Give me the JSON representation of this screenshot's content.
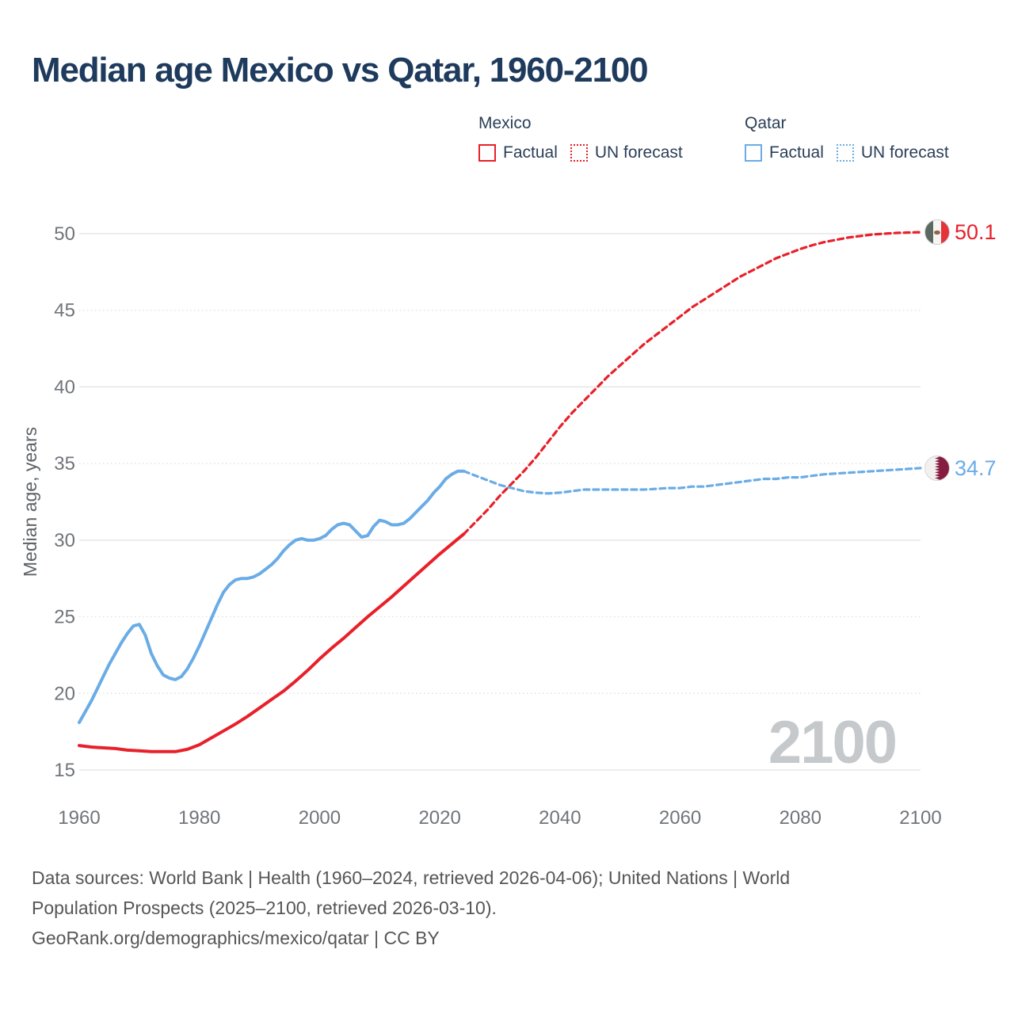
{
  "title": "Median age Mexico vs Qatar, 1960-2100",
  "legend": {
    "groups": [
      {
        "title": "Mexico",
        "color": "#e8202a",
        "items": [
          {
            "label": "Factual",
            "style": "solid"
          },
          {
            "label": "UN forecast",
            "style": "dotted"
          }
        ]
      },
      {
        "title": "Qatar",
        "color": "#6aace6",
        "items": [
          {
            "label": "Factual",
            "style": "solid"
          },
          {
            "label": "UN forecast",
            "style": "dotted"
          }
        ]
      }
    ]
  },
  "chart_data": {
    "type": "line",
    "title": "Median age Mexico vs Qatar, 1960-2100",
    "xlabel": "",
    "ylabel": "Median age, years",
    "xlim": [
      1960,
      2100
    ],
    "ylim": [
      15,
      50
    ],
    "x_ticks": [
      1960,
      1980,
      2000,
      2020,
      2040,
      2060,
      2080,
      2100
    ],
    "y_ticks": [
      15,
      20,
      25,
      30,
      35,
      40,
      45,
      50
    ],
    "grid": {
      "solid": [
        15,
        30,
        40,
        50
      ],
      "dotted": [
        20,
        25,
        35,
        45
      ]
    },
    "legend_position": "top-right",
    "series": [
      {
        "id": "mexico-factual",
        "name": "Mexico — Factual",
        "color": "#e8202a",
        "dash": "solid",
        "points": [
          [
            1960,
            16.6
          ],
          [
            1962,
            16.5
          ],
          [
            1964,
            16.45
          ],
          [
            1966,
            16.4
          ],
          [
            1968,
            16.3
          ],
          [
            1970,
            16.25
          ],
          [
            1972,
            16.2
          ],
          [
            1974,
            16.2
          ],
          [
            1976,
            16.2
          ],
          [
            1978,
            16.35
          ],
          [
            1980,
            16.65
          ],
          [
            1982,
            17.1
          ],
          [
            1984,
            17.55
          ],
          [
            1986,
            18.0
          ],
          [
            1988,
            18.5
          ],
          [
            1990,
            19.05
          ],
          [
            1992,
            19.6
          ],
          [
            1994,
            20.15
          ],
          [
            1996,
            20.8
          ],
          [
            1998,
            21.5
          ],
          [
            2000,
            22.25
          ],
          [
            2002,
            22.95
          ],
          [
            2004,
            23.6
          ],
          [
            2006,
            24.3
          ],
          [
            2008,
            25.0
          ],
          [
            2010,
            25.65
          ],
          [
            2012,
            26.3
          ],
          [
            2014,
            27.0
          ],
          [
            2016,
            27.7
          ],
          [
            2018,
            28.4
          ],
          [
            2020,
            29.1
          ],
          [
            2022,
            29.75
          ],
          [
            2024,
            30.4
          ]
        ]
      },
      {
        "id": "mexico-forecast",
        "name": "Mexico — UN forecast",
        "color": "#e8202a",
        "dash": "dashed",
        "points": [
          [
            2024,
            30.4
          ],
          [
            2026,
            31.2
          ],
          [
            2028,
            32.0
          ],
          [
            2030,
            32.9
          ],
          [
            2032,
            33.7
          ],
          [
            2034,
            34.5
          ],
          [
            2036,
            35.4
          ],
          [
            2038,
            36.4
          ],
          [
            2040,
            37.4
          ],
          [
            2042,
            38.3
          ],
          [
            2044,
            39.1
          ],
          [
            2046,
            39.9
          ],
          [
            2048,
            40.7
          ],
          [
            2050,
            41.4
          ],
          [
            2052,
            42.1
          ],
          [
            2054,
            42.8
          ],
          [
            2056,
            43.4
          ],
          [
            2058,
            44.0
          ],
          [
            2060,
            44.6
          ],
          [
            2062,
            45.2
          ],
          [
            2064,
            45.7
          ],
          [
            2066,
            46.2
          ],
          [
            2068,
            46.7
          ],
          [
            2070,
            47.2
          ],
          [
            2072,
            47.6
          ],
          [
            2074,
            48.0
          ],
          [
            2076,
            48.4
          ],
          [
            2078,
            48.7
          ],
          [
            2080,
            49.0
          ],
          [
            2082,
            49.25
          ],
          [
            2084,
            49.45
          ],
          [
            2086,
            49.6
          ],
          [
            2088,
            49.75
          ],
          [
            2090,
            49.85
          ],
          [
            2092,
            49.95
          ],
          [
            2094,
            50.0
          ],
          [
            2096,
            50.05
          ],
          [
            2098,
            50.08
          ],
          [
            2100,
            50.1
          ]
        ]
      },
      {
        "id": "qatar-factual",
        "name": "Qatar — Factual",
        "color": "#6aace6",
        "dash": "solid",
        "points": [
          [
            1960,
            18.1
          ],
          [
            1961,
            18.8
          ],
          [
            1962,
            19.5
          ],
          [
            1963,
            20.3
          ],
          [
            1964,
            21.1
          ],
          [
            1965,
            21.9
          ],
          [
            1966,
            22.6
          ],
          [
            1967,
            23.3
          ],
          [
            1968,
            23.9
          ],
          [
            1969,
            24.4
          ],
          [
            1970,
            24.5
          ],
          [
            1971,
            23.8
          ],
          [
            1972,
            22.6
          ],
          [
            1973,
            21.8
          ],
          [
            1974,
            21.2
          ],
          [
            1975,
            21.0
          ],
          [
            1976,
            20.9
          ],
          [
            1977,
            21.1
          ],
          [
            1978,
            21.6
          ],
          [
            1979,
            22.3
          ],
          [
            1980,
            23.1
          ],
          [
            1981,
            24.0
          ],
          [
            1982,
            24.9
          ],
          [
            1983,
            25.8
          ],
          [
            1984,
            26.6
          ],
          [
            1985,
            27.1
          ],
          [
            1986,
            27.4
          ],
          [
            1987,
            27.5
          ],
          [
            1988,
            27.5
          ],
          [
            1989,
            27.6
          ],
          [
            1990,
            27.8
          ],
          [
            1991,
            28.1
          ],
          [
            1992,
            28.4
          ],
          [
            1993,
            28.8
          ],
          [
            1994,
            29.3
          ],
          [
            1995,
            29.7
          ],
          [
            1996,
            30.0
          ],
          [
            1997,
            30.1
          ],
          [
            1998,
            30.0
          ],
          [
            1999,
            30.0
          ],
          [
            2000,
            30.1
          ],
          [
            2001,
            30.3
          ],
          [
            2002,
            30.7
          ],
          [
            2003,
            31.0
          ],
          [
            2004,
            31.1
          ],
          [
            2005,
            31.0
          ],
          [
            2006,
            30.6
          ],
          [
            2007,
            30.2
          ],
          [
            2008,
            30.3
          ],
          [
            2009,
            30.9
          ],
          [
            2010,
            31.3
          ],
          [
            2011,
            31.2
          ],
          [
            2012,
            31.0
          ],
          [
            2013,
            31.0
          ],
          [
            2014,
            31.1
          ],
          [
            2015,
            31.4
          ],
          [
            2016,
            31.8
          ],
          [
            2017,
            32.2
          ],
          [
            2018,
            32.6
          ],
          [
            2019,
            33.1
          ],
          [
            2020,
            33.5
          ],
          [
            2021,
            34.0
          ],
          [
            2022,
            34.3
          ],
          [
            2023,
            34.5
          ],
          [
            2024,
            34.5
          ]
        ]
      },
      {
        "id": "qatar-forecast",
        "name": "Qatar — UN forecast",
        "color": "#6aace6",
        "dash": "dashed",
        "points": [
          [
            2024,
            34.5
          ],
          [
            2026,
            34.2
          ],
          [
            2028,
            33.9
          ],
          [
            2030,
            33.6
          ],
          [
            2032,
            33.4
          ],
          [
            2034,
            33.2
          ],
          [
            2036,
            33.1
          ],
          [
            2038,
            33.05
          ],
          [
            2040,
            33.1
          ],
          [
            2042,
            33.2
          ],
          [
            2044,
            33.3
          ],
          [
            2046,
            33.3
          ],
          [
            2048,
            33.3
          ],
          [
            2050,
            33.3
          ],
          [
            2052,
            33.3
          ],
          [
            2054,
            33.3
          ],
          [
            2056,
            33.35
          ],
          [
            2058,
            33.4
          ],
          [
            2060,
            33.4
          ],
          [
            2062,
            33.5
          ],
          [
            2064,
            33.5
          ],
          [
            2066,
            33.6
          ],
          [
            2068,
            33.7
          ],
          [
            2070,
            33.8
          ],
          [
            2072,
            33.9
          ],
          [
            2074,
            34.0
          ],
          [
            2076,
            34.0
          ],
          [
            2078,
            34.1
          ],
          [
            2080,
            34.1
          ],
          [
            2082,
            34.2
          ],
          [
            2084,
            34.3
          ],
          [
            2086,
            34.35
          ],
          [
            2088,
            34.4
          ],
          [
            2090,
            34.45
          ],
          [
            2092,
            34.5
          ],
          [
            2094,
            34.55
          ],
          [
            2096,
            34.6
          ],
          [
            2098,
            34.65
          ],
          [
            2100,
            34.7
          ]
        ]
      }
    ],
    "end_labels": [
      {
        "id": "mexico",
        "series": "Mexico",
        "value": "50.1",
        "color": "#e8202a",
        "flag": "mexico-flag"
      },
      {
        "id": "qatar",
        "series": "Qatar",
        "value": "34.7",
        "color": "#6aace6",
        "flag": "qatar-flag"
      }
    ]
  },
  "watermark": "2100",
  "footer": {
    "lines": [
      "Data sources: World Bank | Health (1960–2024, retrieved 2026-04-06); United Nations | World",
      "Population Prospects (2025–2100, retrieved 2026-03-10).",
      "GeoRank.org/demographics/mexico/qatar | CC BY"
    ]
  }
}
